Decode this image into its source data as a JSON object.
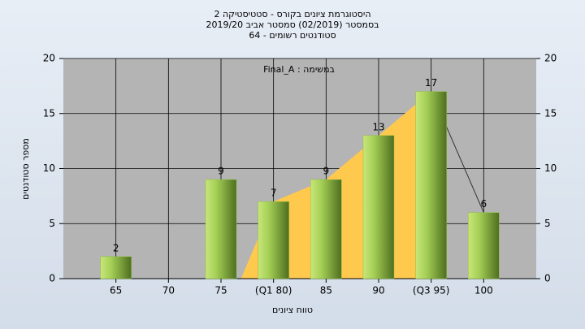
{
  "chart_data": {
    "type": "bar",
    "title": [
      "היסטוגרמת ציונים בקורס - סטטיסטיקה 2",
      "בסמסטר  (02/2019)  סמסטר אביב 2019/20",
      "סטודנטים רשומים - 64"
    ],
    "annotation": "Final_A : במשימה",
    "x_label": "טווח ציונים",
    "y_label": "מספר סטודנטים",
    "x": [
      65,
      70,
      75,
      80,
      85,
      90,
      95,
      100
    ],
    "values": [
      2,
      null,
      9,
      7,
      9,
      13,
      17,
      6
    ],
    "color": "#8fbf3f",
    "xlim": [
      60,
      105
    ],
    "xticks": [
      65,
      70,
      75,
      {
        "value": 80,
        "label": "(Q1 80)"
      },
      85,
      90,
      {
        "value": 95,
        "label": "(Q3 95)"
      },
      100
    ],
    "ylim": [
      0,
      20
    ],
    "yticks": [
      0,
      5,
      10,
      15,
      20
    ],
    "grid": true
  }
}
